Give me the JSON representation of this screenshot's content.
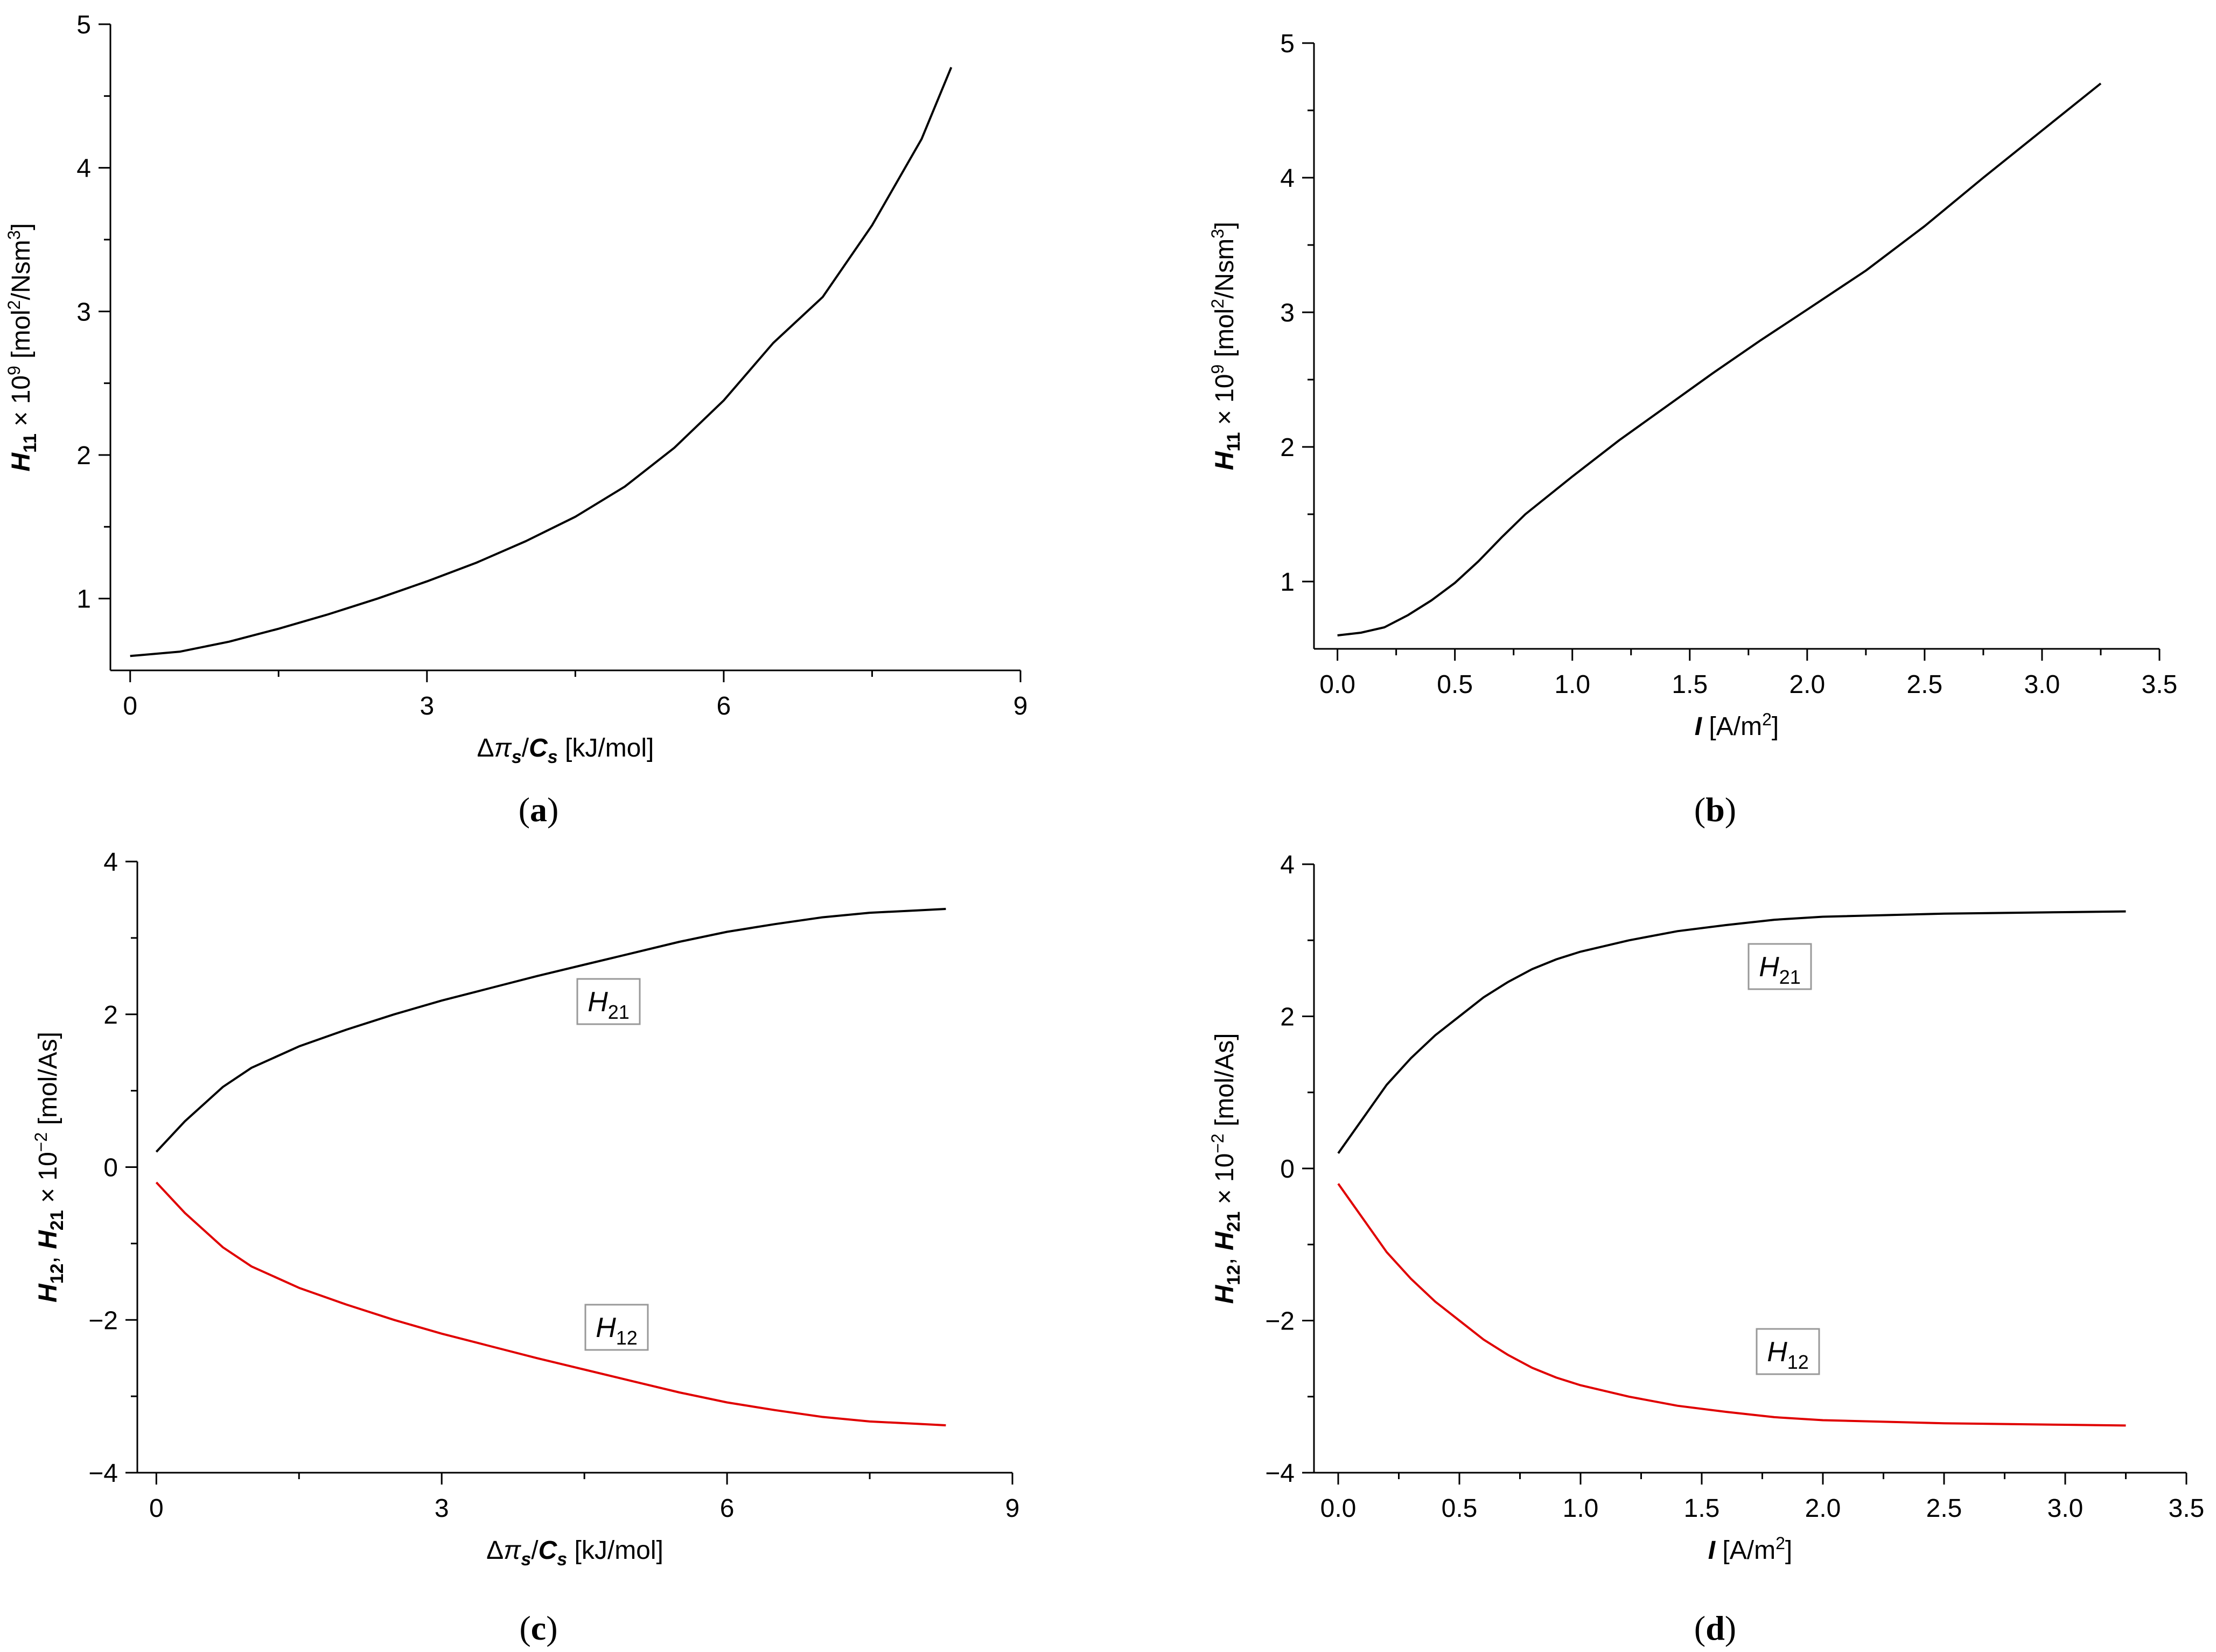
{
  "chart_data": [
    {
      "panel": "(a)",
      "type": "line",
      "xlabel": "Δπs/Cs [kJ/mol]",
      "ylabel": "H11 × 10^9 [mol^2/Nsm^3]",
      "xlim": [
        -0.2,
        9
      ],
      "ylim": [
        0.5,
        5
      ],
      "xticks": [
        0,
        3,
        6,
        9
      ],
      "yticks": [
        1,
        2,
        3,
        4,
        5
      ],
      "xtick_labels": [
        "0",
        "3",
        "6",
        "9"
      ],
      "ytick_labels": [
        "1",
        "2",
        "3",
        "4",
        "5"
      ],
      "series": [
        {
          "name": "H11",
          "color": "#000000",
          "x": [
            0,
            0.5,
            1,
            1.5,
            2,
            2.5,
            3,
            3.5,
            4,
            4.5,
            5,
            5.5,
            6,
            6.5,
            7,
            7.5,
            8,
            8.3
          ],
          "y": [
            0.6,
            0.63,
            0.7,
            0.79,
            0.89,
            1.0,
            1.12,
            1.25,
            1.4,
            1.57,
            1.78,
            2.05,
            2.38,
            2.78,
            3.1,
            3.6,
            4.2,
            4.7
          ]
        }
      ]
    },
    {
      "panel": "(b)",
      "type": "line",
      "xlabel": "I [A/m^2]",
      "ylabel": "H11 × 10^9 [mol^2/Nsm^3]",
      "xlim": [
        -0.1,
        3.5
      ],
      "ylim": [
        0.5,
        5
      ],
      "xticks": [
        0,
        0.5,
        1,
        1.5,
        2,
        2.5,
        3,
        3.5
      ],
      "yticks": [
        1,
        2,
        3,
        4,
        5
      ],
      "xtick_labels": [
        "0.0",
        "0.5",
        "1.0",
        "1.5",
        "2.0",
        "2.5",
        "3.0",
        "3.5"
      ],
      "ytick_labels": [
        "1",
        "2",
        "3",
        "4",
        "5"
      ],
      "series": [
        {
          "name": "H11",
          "color": "#000000",
          "x": [
            0,
            0.1,
            0.2,
            0.3,
            0.4,
            0.5,
            0.6,
            0.7,
            0.8,
            1.0,
            1.2,
            1.4,
            1.6,
            1.8,
            2.0,
            2.25,
            2.5,
            2.75,
            3.0,
            3.25
          ],
          "y": [
            0.6,
            0.62,
            0.66,
            0.75,
            0.86,
            0.99,
            1.15,
            1.33,
            1.5,
            1.78,
            2.05,
            2.3,
            2.55,
            2.79,
            3.02,
            3.31,
            3.64,
            4.0,
            4.35,
            4.7
          ]
        }
      ]
    },
    {
      "panel": "(c)",
      "type": "line",
      "xlabel": "Δπs/Cs [kJ/mol]",
      "ylabel": "H12, H21 × 10^-2 [mol/As]",
      "xlim": [
        -0.2,
        9
      ],
      "ylim": [
        -4,
        4
      ],
      "xticks": [
        0,
        3,
        6,
        9
      ],
      "yticks": [
        -4,
        -2,
        0,
        2,
        4
      ],
      "xtick_labels": [
        "0",
        "3",
        "6",
        "9"
      ],
      "ytick_labels": [
        "-4",
        "-2",
        "0",
        "2",
        "4"
      ],
      "series": [
        {
          "name": "H21",
          "color": "#000000",
          "x": [
            0,
            0.3,
            0.7,
            1,
            1.5,
            2,
            2.5,
            3,
            3.5,
            4,
            4.5,
            5,
            5.5,
            6,
            6.5,
            7,
            7.5,
            8,
            8.3
          ],
          "y": [
            0.2,
            0.6,
            1.05,
            1.3,
            1.58,
            1.8,
            2.0,
            2.18,
            2.34,
            2.5,
            2.65,
            2.8,
            2.95,
            3.08,
            3.18,
            3.27,
            3.33,
            3.36,
            3.38
          ]
        },
        {
          "name": "H12",
          "color": "#e00000",
          "x": [
            0,
            0.3,
            0.7,
            1,
            1.5,
            2,
            2.5,
            3,
            3.5,
            4,
            4.5,
            5,
            5.5,
            6,
            6.5,
            7,
            7.5,
            8,
            8.3
          ],
          "y": [
            -0.2,
            -0.6,
            -1.05,
            -1.3,
            -1.58,
            -1.8,
            -2.0,
            -2.18,
            -2.34,
            -2.5,
            -2.65,
            -2.8,
            -2.95,
            -3.08,
            -3.18,
            -3.27,
            -3.33,
            -3.36,
            -3.38
          ]
        }
      ],
      "annotations": [
        {
          "series": "H21",
          "text": "H",
          "sub": "21"
        },
        {
          "series": "H12",
          "text": "H",
          "sub": "12"
        }
      ]
    },
    {
      "panel": "(d)",
      "type": "line",
      "xlabel": "I [A/m^2]",
      "ylabel": "H12, H21 × 10^-2 [mol/As]",
      "xlim": [
        -0.1,
        3.5
      ],
      "ylim": [
        -4,
        4
      ],
      "xticks": [
        0,
        0.5,
        1,
        1.5,
        2,
        2.5,
        3,
        3.5
      ],
      "yticks": [
        -4,
        -2,
        0,
        2,
        4
      ],
      "xtick_labels": [
        "0.0",
        "0.5",
        "1.0",
        "1.5",
        "2.0",
        "2.5",
        "3.0",
        "3.5"
      ],
      "ytick_labels": [
        "-4",
        "-2",
        "0",
        "2",
        "4"
      ],
      "series": [
        {
          "name": "H21",
          "color": "#000000",
          "x": [
            0,
            0.1,
            0.2,
            0.3,
            0.4,
            0.5,
            0.6,
            0.7,
            0.8,
            0.9,
            1.0,
            1.2,
            1.4,
            1.6,
            1.8,
            2.0,
            2.5,
            3.0,
            3.25
          ],
          "y": [
            0.2,
            0.65,
            1.1,
            1.45,
            1.75,
            2.0,
            2.25,
            2.45,
            2.62,
            2.75,
            2.85,
            3.0,
            3.12,
            3.2,
            3.27,
            3.31,
            3.35,
            3.37,
            3.38
          ]
        },
        {
          "name": "H12",
          "color": "#e00000",
          "x": [
            0,
            0.1,
            0.2,
            0.3,
            0.4,
            0.5,
            0.6,
            0.7,
            0.8,
            0.9,
            1.0,
            1.2,
            1.4,
            1.6,
            1.8,
            2.0,
            2.5,
            3.0,
            3.25
          ],
          "y": [
            -0.2,
            -0.65,
            -1.1,
            -1.45,
            -1.75,
            -2.0,
            -2.25,
            -2.45,
            -2.62,
            -2.75,
            -2.85,
            -3.0,
            -3.12,
            -3.2,
            -3.27,
            -3.31,
            -3.35,
            -3.37,
            -3.38
          ]
        }
      ],
      "annotations": [
        {
          "series": "H21",
          "text": "H",
          "sub": "21"
        },
        {
          "series": "H12",
          "text": "H",
          "sub": "12"
        }
      ]
    }
  ]
}
